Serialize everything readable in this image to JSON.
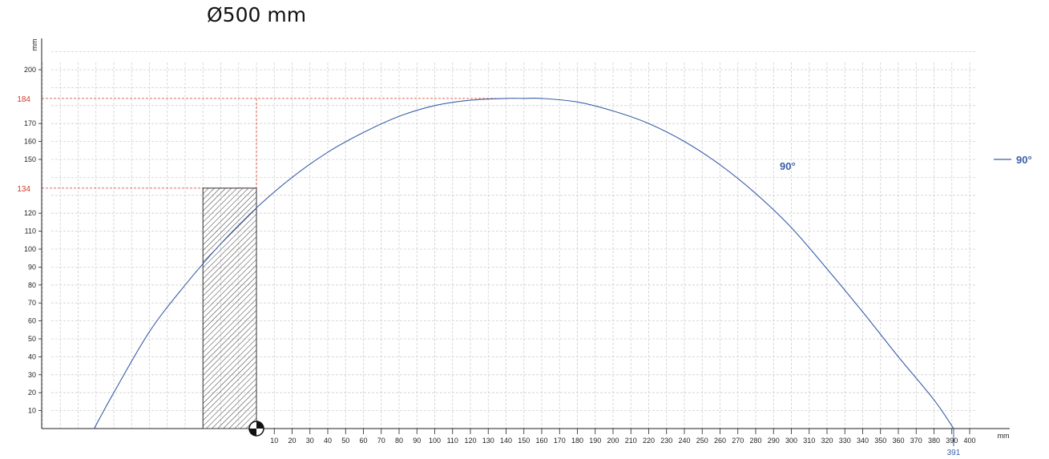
{
  "chart_data": {
    "type": "line",
    "title": "Ø500 mm",
    "xlabel": "mm",
    "ylabel": "mm",
    "xlim": [
      -120,
      400
    ],
    "ylim": [
      0,
      200
    ],
    "grid": true,
    "legend_position": "right",
    "x_ticks": [
      10,
      20,
      30,
      40,
      50,
      60,
      70,
      80,
      90,
      100,
      110,
      120,
      130,
      140,
      150,
      160,
      170,
      180,
      190,
      200,
      210,
      220,
      230,
      240,
      250,
      260,
      270,
      280,
      290,
      300,
      310,
      320,
      330,
      340,
      350,
      360,
      370,
      380,
      390,
      400
    ],
    "y_ticks": [
      10,
      20,
      30,
      40,
      50,
      60,
      70,
      80,
      90,
      100,
      110,
      120,
      150,
      160,
      170,
      200
    ],
    "series": [
      {
        "name": "90°",
        "color": "#3a5fa8",
        "x": [
          -91,
          -80,
          -60,
          -40,
          -20,
          0,
          20,
          40,
          60,
          80,
          100,
          120,
          140,
          150,
          160,
          180,
          200,
          220,
          240,
          260,
          280,
          300,
          320,
          340,
          360,
          380,
          391
        ],
        "y": [
          0,
          20,
          54,
          80,
          103,
          123,
          140,
          154,
          165,
          174,
          180,
          183,
          184,
          184,
          184,
          182,
          177,
          170,
          160,
          147,
          131,
          112,
          89,
          65,
          40,
          16,
          0
        ]
      }
    ],
    "annotations": {
      "y_markers": [
        {
          "value": 184,
          "label": "184",
          "color": "#d03a2a"
        },
        {
          "value": 134,
          "label": "134",
          "color": "#d03a2a"
        }
      ],
      "x_end_marker": {
        "value": 391,
        "label": "391",
        "color": "#3a5fa8"
      },
      "hatched_box": {
        "x0": -30,
        "x1": 0,
        "y0": 0,
        "y1": 134
      },
      "origin_marker": {
        "x": 0,
        "y": 0
      },
      "curve_label": "90°"
    }
  }
}
